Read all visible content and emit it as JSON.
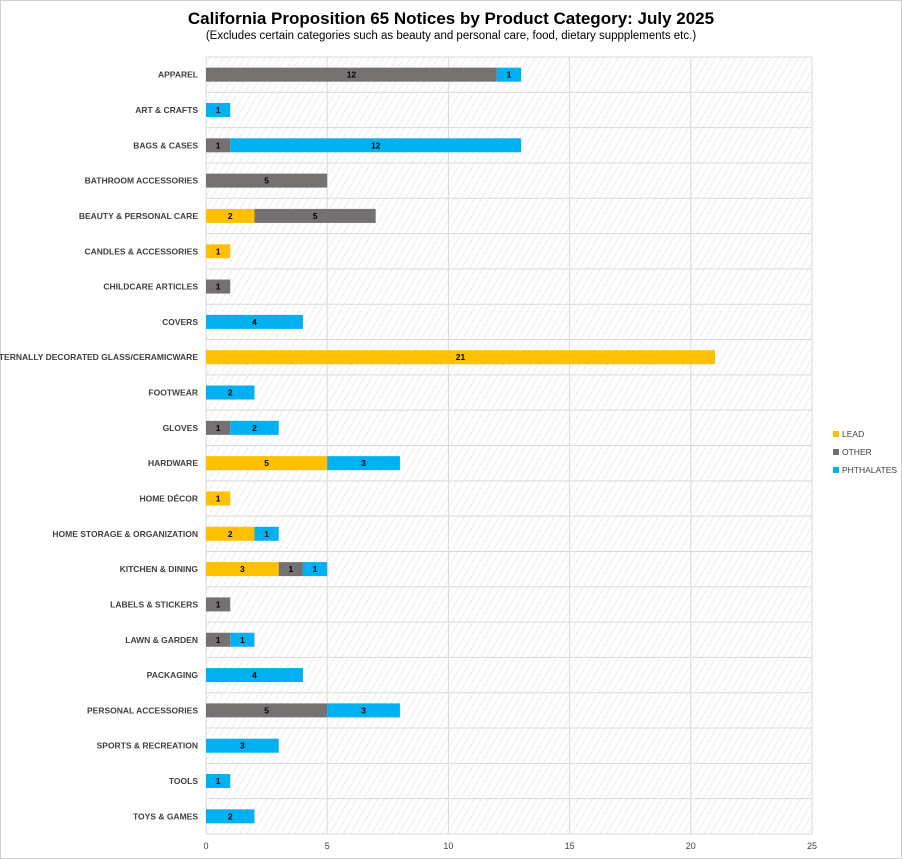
{
  "chart_data": {
    "type": "bar",
    "orientation": "horizontal",
    "stacked": true,
    "title": "California Proposition 65 Notices by Product Category: July 2025",
    "subtitle": "(Excludes certain categories such as beauty and personal care, food, dietary suppplements etc.)",
    "xlabel": "",
    "ylabel": "",
    "xlim": [
      0,
      25
    ],
    "xticks": [
      0,
      5,
      10,
      15,
      20,
      25
    ],
    "grid": true,
    "legend": "right",
    "categories": [
      "APPAREL",
      "ART & CRAFTS",
      "BAGS & CASES",
      "BATHROOM ACCESSORIES",
      "BEAUTY & PERSONAL CARE",
      "CANDLES & ACCESSORIES",
      "CHILDCARE ARTICLES",
      "COVERS",
      "EXTERNALLY DECORATED GLASS/CERAMICWARE",
      "FOOTWEAR",
      "GLOVES",
      "HARDWARE",
      "HOME DÉCOR",
      "HOME STORAGE & ORGANIZATION",
      "KITCHEN & DINING",
      "LABELS & STICKERS",
      "LAWN & GARDEN",
      "PACKAGING",
      "PERSONAL ACCESSORIES",
      "SPORTS & RECREATION",
      "TOOLS",
      "TOYS & GAMES"
    ],
    "series": [
      {
        "name": "LEAD",
        "color": "#FFC000",
        "values": [
          0,
          0,
          0,
          0,
          2,
          1,
          0,
          0,
          21,
          0,
          0,
          5,
          1,
          2,
          3,
          0,
          0,
          0,
          0,
          0,
          0,
          0
        ]
      },
      {
        "name": "OTHER",
        "color": "#767171",
        "values": [
          12,
          0,
          1,
          5,
          5,
          0,
          1,
          0,
          0,
          0,
          1,
          0,
          0,
          0,
          1,
          1,
          1,
          0,
          5,
          0,
          0,
          0
        ]
      },
      {
        "name": "PHTHALATES",
        "color": "#00B0F0",
        "values": [
          1,
          1,
          12,
          0,
          0,
          0,
          0,
          4,
          0,
          2,
          2,
          3,
          0,
          1,
          1,
          0,
          1,
          4,
          3,
          3,
          1,
          2
        ]
      }
    ]
  }
}
